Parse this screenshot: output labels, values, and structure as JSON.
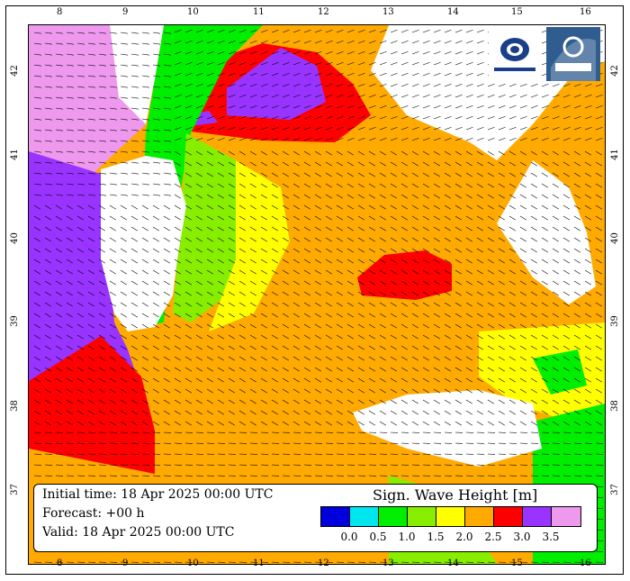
{
  "map": {
    "lon_ticks_top": [
      "8",
      "9",
      "10",
      "11",
      "12",
      "13",
      "14",
      "15",
      "16"
    ],
    "lon_ticks_bottom": [
      "8",
      "9",
      "10",
      "11",
      "12",
      "13",
      "14",
      "15",
      "16"
    ],
    "lat_ticks_left": [
      "42",
      "41",
      "40",
      "39",
      "38",
      "37"
    ],
    "lat_ticks_right": [
      "42",
      "41",
      "40",
      "39",
      "38",
      "37"
    ],
    "land_color": "#ffffff",
    "logos": [
      "nautilos-logo",
      "ismar-logo"
    ]
  },
  "info": {
    "initial_time": "Initial time: 18 Apr 2025 00:00 UTC",
    "forecast": "Forecast: +00 h",
    "valid": "Valid: 18 Apr 2025 00:00 UTC"
  },
  "legend": {
    "title": "Sign. Wave Height [m]",
    "colors": [
      "#0000dd",
      "#00e5ee",
      "#00ee00",
      "#88ee00",
      "#ffff00",
      "#ffaa00",
      "#ff0000",
      "#9933ff",
      "#ee99ee"
    ],
    "tick_labels": [
      "0.0",
      "0.5",
      "1.0",
      "1.5",
      "2.0",
      "2.5",
      "3.0",
      "3.5"
    ]
  },
  "chart_data": {
    "type": "heatmap",
    "title": "",
    "variable": "Sign. Wave Height [m]",
    "lon_range": [
      7.5,
      16.3
    ],
    "lat_range": [
      36.4,
      42.6
    ],
    "color_bins": [
      0.0,
      0.5,
      1.0,
      1.5,
      2.0,
      2.5,
      3.0,
      3.5
    ],
    "regions": [
      {
        "area": "west of Corsica",
        "value": "> 3.5"
      },
      {
        "area": "west of Sardinia",
        "value": "3.0 - 3.5"
      },
      {
        "area": "southwest of Sardinia",
        "value": "2.5 - 3.5"
      },
      {
        "area": "northern Tyrrhenian near Elba",
        "value": "2.5 - 3.5"
      },
      {
        "area": "central Tyrrhenian",
        "value": "2.0 - 2.5"
      },
      {
        "area": "central Tyrrhenian patch",
        "value": "2.5 - 3.0"
      },
      {
        "area": "east coast of Sardinia",
        "value": "0.5 - 2.0"
      },
      {
        "area": "Strait of Messina / Ionian",
        "value": "0.5 - 2.0"
      }
    ]
  }
}
